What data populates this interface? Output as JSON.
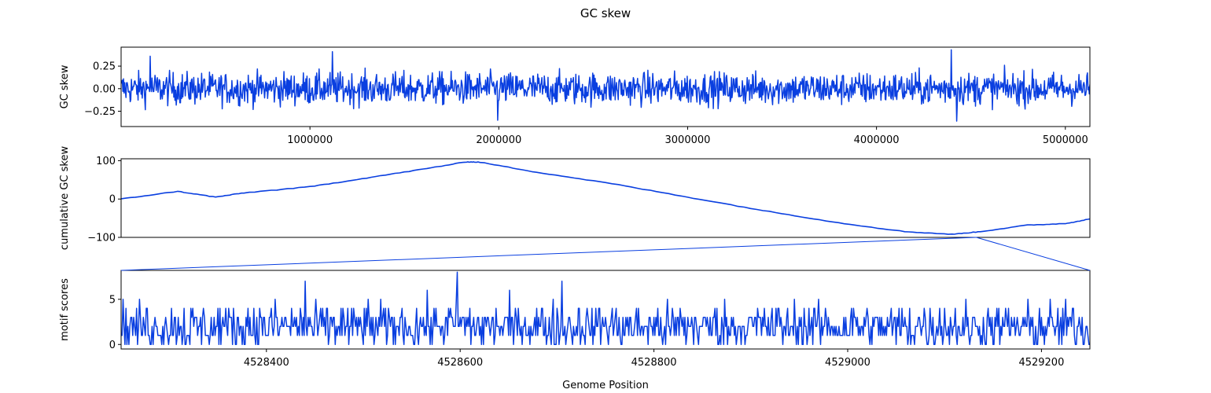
{
  "title": "GC skew",
  "xlabel": "Genome Position",
  "colors": {
    "series": "#0a3fe0",
    "axes": "#000000",
    "background": "#ffffff"
  },
  "chart_data": [
    {
      "type": "line",
      "ylabel": "GC skew",
      "xlim": [
        1,
        5130000
      ],
      "ylim": [
        -0.42,
        0.46
      ],
      "xticks": [
        1000000,
        2000000,
        3000000,
        4000000,
        5000000
      ],
      "xtick_labels": [
        "1000000",
        "2000000",
        "3000000",
        "4000000",
        "5000000"
      ],
      "yticks": [
        -0.25,
        0.0,
        0.25
      ],
      "ytick_labels": [
        "−0.25",
        "0.00",
        "0.25"
      ],
      "approx_amplitude": 0.12,
      "spikes": [
        {
          "x": 155000,
          "y": 0.36
        },
        {
          "x": 1120000,
          "y": 0.41
        },
        {
          "x": 1995000,
          "y": -0.35
        },
        {
          "x": 4395000,
          "y": 0.43
        },
        {
          "x": 4425000,
          "y": -0.36
        }
      ]
    },
    {
      "type": "line",
      "ylabel": "cumulative GC skew",
      "xlim": [
        1,
        5130000
      ],
      "ylim": [
        -100,
        105
      ],
      "yticks": [
        -100,
        0,
        100
      ],
      "ytick_labels": [
        "−100",
        "0",
        "100"
      ],
      "points": [
        [
          0,
          0
        ],
        [
          300000,
          20
        ],
        [
          500000,
          5
        ],
        [
          650000,
          16
        ],
        [
          1000000,
          32
        ],
        [
          1300000,
          55
        ],
        [
          1600000,
          78
        ],
        [
          1830000,
          97
        ],
        [
          1900000,
          96
        ],
        [
          2200000,
          70
        ],
        [
          2600000,
          40
        ],
        [
          3000000,
          5
        ],
        [
          3400000,
          -30
        ],
        [
          3800000,
          -62
        ],
        [
          4150000,
          -85
        ],
        [
          4400000,
          -92
        ],
        [
          4550000,
          -85
        ],
        [
          4800000,
          -68
        ],
        [
          5000000,
          -64
        ],
        [
          5130000,
          -52
        ]
      ]
    },
    {
      "type": "line",
      "ylabel": "motif scores",
      "xlim": [
        4528250,
        4529250
      ],
      "ylim": [
        -0.5,
        8.2
      ],
      "xticks": [
        4528400,
        4528600,
        4528800,
        4529000,
        4529200
      ],
      "xtick_labels": [
        "4528400",
        "4528600",
        "4528800",
        "4529000",
        "4529200"
      ],
      "yticks": [
        0,
        5
      ],
      "ytick_labels": [
        "0",
        "5"
      ],
      "value_range": [
        0,
        8
      ],
      "spikes": [
        {
          "x": 4528440,
          "y": 7
        },
        {
          "x": 4528597,
          "y": 8
        },
        {
          "x": 4528705,
          "y": 7
        }
      ]
    }
  ]
}
